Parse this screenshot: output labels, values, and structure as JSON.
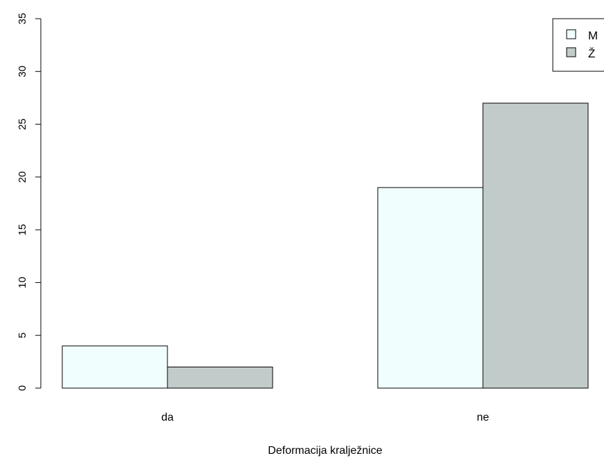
{
  "chart_data": {
    "type": "bar",
    "categories": [
      "da",
      "ne"
    ],
    "series": [
      {
        "name": "M",
        "values": [
          4,
          19
        ],
        "color": "#f0fffe"
      },
      {
        "name": "Ž",
        "values": [
          2,
          27
        ],
        "color": "#c1cbca"
      }
    ],
    "xlabel": "Deformacija kralježnice",
    "ylabel": "",
    "ylim": [
      0,
      35
    ],
    "yticks": [
      "0",
      "5",
      "10",
      "15",
      "20",
      "25",
      "30",
      "35"
    ],
    "grid": false,
    "legend_position": "top-right"
  }
}
